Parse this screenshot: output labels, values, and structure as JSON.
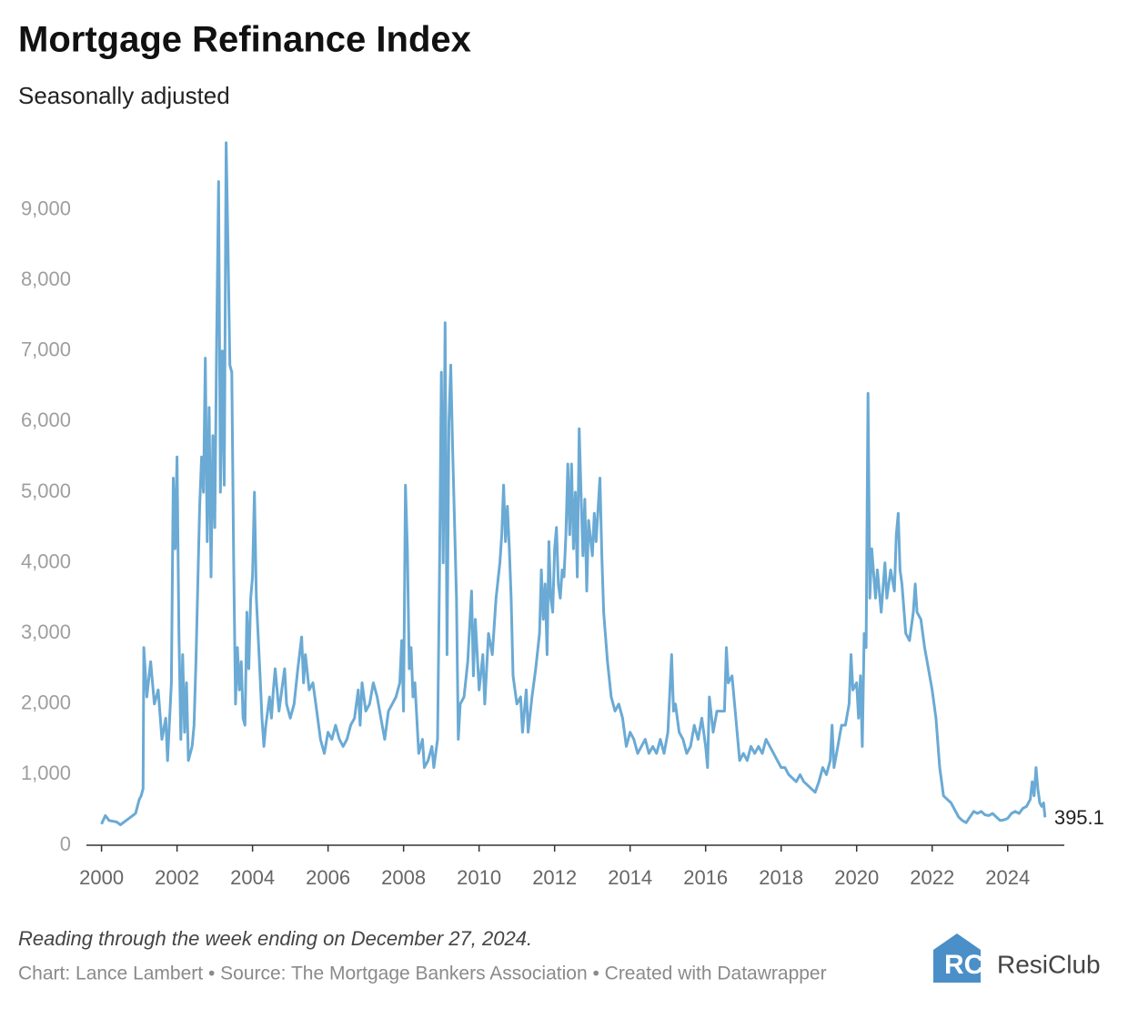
{
  "chart_data": {
    "type": "line",
    "title": "Mortgage Refinance Index",
    "subtitle": "Seasonally adjusted",
    "note": "Reading through the week ending on December 27, 2024.",
    "source": "Chart: Lance Lambert • Source: The Mortgage Bankers Association • Created with Datawrapper",
    "brand": "ResiClub",
    "xlim": [
      1999.6,
      2025.5
    ],
    "xticks": [
      2000,
      2002,
      2004,
      2006,
      2008,
      2010,
      2012,
      2014,
      2016,
      2018,
      2020,
      2022,
      2024
    ],
    "ylim": [
      0,
      10000
    ],
    "yticks": [
      0,
      {
        "value": 1000,
        "label": "1,000"
      },
      {
        "value": 2000,
        "label": "2,000"
      },
      {
        "value": 3000,
        "label": "3,000"
      },
      {
        "value": 4000,
        "label": "4,000"
      },
      {
        "value": 5000,
        "label": "5,000"
      },
      {
        "value": 6000,
        "label": "6,000"
      },
      {
        "value": 7000,
        "label": "7,000"
      },
      {
        "value": 8000,
        "label": "8,000"
      },
      {
        "value": 9000,
        "label": "9,000"
      }
    ],
    "grid": false,
    "series": [
      {
        "name": "Mortgage Refinance Index",
        "color": "#6aaad4",
        "x": [
          2000.0,
          2000.1,
          2000.2,
          2000.4,
          2000.5,
          2000.7,
          2000.9,
          2001.0,
          2001.05,
          2001.1,
          2001.12,
          2001.2,
          2001.3,
          2001.4,
          2001.5,
          2001.6,
          2001.7,
          2001.75,
          2001.85,
          2001.9,
          2001.95,
          2002.0,
          2002.05,
          2002.1,
          2002.15,
          2002.2,
          2002.25,
          2002.3,
          2002.4,
          2002.45,
          2002.5,
          2002.6,
          2002.65,
          2002.7,
          2002.75,
          2002.8,
          2002.85,
          2002.9,
          2002.95,
          2003.0,
          2003.05,
          2003.1,
          2003.15,
          2003.2,
          2003.25,
          2003.3,
          2003.35,
          2003.4,
          2003.45,
          2003.5,
          2003.55,
          2003.6,
          2003.65,
          2003.7,
          2003.75,
          2003.8,
          2003.85,
          2003.9,
          2003.95,
          2004.0,
          2004.05,
          2004.1,
          2004.2,
          2004.25,
          2004.3,
          2004.35,
          2004.45,
          2004.5,
          2004.55,
          2004.6,
          2004.7,
          2004.8,
          2004.85,
          2004.9,
          2005.0,
          2005.1,
          2005.2,
          2005.3,
          2005.35,
          2005.4,
          2005.5,
          2005.6,
          2005.7,
          2005.8,
          2005.9,
          2006.0,
          2006.1,
          2006.2,
          2006.3,
          2006.4,
          2006.5,
          2006.6,
          2006.7,
          2006.8,
          2006.85,
          2006.9,
          2007.0,
          2007.1,
          2007.2,
          2007.3,
          2007.4,
          2007.5,
          2007.6,
          2007.7,
          2007.8,
          2007.9,
          2007.95,
          2008.0,
          2008.05,
          2008.1,
          2008.15,
          2008.2,
          2008.25,
          2008.3,
          2008.4,
          2008.5,
          2008.55,
          2008.65,
          2008.75,
          2008.8,
          2008.9,
          2008.95,
          2009.0,
          2009.05,
          2009.1,
          2009.15,
          2009.2,
          2009.25,
          2009.3,
          2009.4,
          2009.45,
          2009.5,
          2009.6,
          2009.7,
          2009.8,
          2009.85,
          2009.9,
          2010.0,
          2010.1,
          2010.15,
          2010.25,
          2010.35,
          2010.45,
          2010.55,
          2010.6,
          2010.65,
          2010.7,
          2010.75,
          2010.8,
          2010.85,
          2010.9,
          2011.0,
          2011.1,
          2011.15,
          2011.25,
          2011.3,
          2011.4,
          2011.5,
          2011.6,
          2011.65,
          2011.7,
          2011.75,
          2011.8,
          2011.85,
          2011.9,
          2011.95,
          2012.0,
          2012.05,
          2012.1,
          2012.15,
          2012.2,
          2012.25,
          2012.3,
          2012.35,
          2012.4,
          2012.45,
          2012.5,
          2012.55,
          2012.6,
          2012.65,
          2012.7,
          2012.75,
          2012.8,
          2012.85,
          2012.9,
          2013.0,
          2013.05,
          2013.1,
          2013.2,
          2013.25,
          2013.3,
          2013.4,
          2013.5,
          2013.6,
          2013.7,
          2013.8,
          2013.9,
          2014.0,
          2014.1,
          2014.2,
          2014.3,
          2014.4,
          2014.5,
          2014.6,
          2014.7,
          2014.8,
          2014.9,
          2015.0,
          2015.1,
          2015.15,
          2015.2,
          2015.3,
          2015.4,
          2015.5,
          2015.6,
          2015.7,
          2015.8,
          2015.9,
          2016.0,
          2016.05,
          2016.1,
          2016.2,
          2016.3,
          2016.4,
          2016.5,
          2016.55,
          2016.6,
          2016.7,
          2016.8,
          2016.9,
          2017.0,
          2017.1,
          2017.2,
          2017.3,
          2017.4,
          2017.5,
          2017.6,
          2017.7,
          2017.8,
          2017.9,
          2018.0,
          2018.1,
          2018.2,
          2018.4,
          2018.5,
          2018.6,
          2018.7,
          2018.8,
          2018.9,
          2019.0,
          2019.1,
          2019.2,
          2019.3,
          2019.35,
          2019.4,
          2019.5,
          2019.6,
          2019.7,
          2019.8,
          2019.85,
          2019.9,
          2020.0,
          2020.05,
          2020.1,
          2020.15,
          2020.2,
          2020.25,
          2020.3,
          2020.35,
          2020.4,
          2020.5,
          2020.55,
          2020.65,
          2020.75,
          2020.8,
          2020.9,
          2021.0,
          2021.05,
          2021.1,
          2021.15,
          2021.2,
          2021.3,
          2021.4,
          2021.5,
          2021.55,
          2021.6,
          2021.7,
          2021.8,
          2021.9,
          2022.0,
          2022.1,
          2022.2,
          2022.3,
          2022.4,
          2022.5,
          2022.6,
          2022.7,
          2022.8,
          2022.9,
          2023.0,
          2023.1,
          2023.2,
          2023.3,
          2023.4,
          2023.5,
          2023.6,
          2023.7,
          2023.8,
          2023.9,
          2024.0,
          2024.1,
          2024.2,
          2024.3,
          2024.4,
          2024.5,
          2024.6,
          2024.65,
          2024.7,
          2024.75,
          2024.8,
          2024.85,
          2024.9,
          2024.95,
          2024.99
        ],
        "values": [
          300,
          420,
          350,
          330,
          290,
          370,
          450,
          650,
          700,
          800,
          2800,
          2100,
          2600,
          2000,
          2200,
          1500,
          1800,
          1200,
          2300,
          5200,
          4200,
          5500,
          3000,
          1500,
          2700,
          1600,
          2300,
          1200,
          1400,
          1700,
          2600,
          4800,
          5500,
          5000,
          6900,
          4300,
          6200,
          3800,
          5800,
          4500,
          7200,
          9400,
          5000,
          7000,
          5100,
          9950,
          8500,
          6800,
          6700,
          4000,
          2000,
          2800,
          2200,
          2600,
          1800,
          1700,
          3300,
          2500,
          3500,
          3800,
          5000,
          3500,
          2400,
          1800,
          1400,
          1700,
          2100,
          1800,
          2200,
          2500,
          1900,
          2300,
          2500,
          2000,
          1800,
          2000,
          2500,
          2950,
          2300,
          2700,
          2200,
          2300,
          1900,
          1500,
          1300,
          1600,
          1500,
          1700,
          1500,
          1400,
          1500,
          1700,
          1800,
          2200,
          1700,
          2300,
          1900,
          2000,
          2300,
          2100,
          1800,
          1500,
          1900,
          2000,
          2100,
          2300,
          2900,
          1900,
          5100,
          4200,
          2500,
          2800,
          2100,
          2300,
          1300,
          1500,
          1100,
          1200,
          1400,
          1100,
          1500,
          3800,
          6700,
          4000,
          7400,
          2700,
          6000,
          6800,
          5600,
          3500,
          1500,
          2000,
          2100,
          2600,
          3600,
          2400,
          3200,
          2200,
          2700,
          2000,
          3000,
          2700,
          3500,
          4000,
          4400,
          5100,
          4300,
          4800,
          4200,
          3500,
          2400,
          2000,
          2100,
          1600,
          2200,
          1600,
          2100,
          2500,
          3000,
          3900,
          3200,
          3700,
          2700,
          4300,
          3500,
          3300,
          4200,
          4500,
          3700,
          3500,
          3900,
          3800,
          4400,
          5400,
          4400,
          5400,
          4200,
          5000,
          3800,
          5900,
          5000,
          4100,
          4900,
          3600,
          4600,
          4100,
          4700,
          4300,
          5200,
          4100,
          3300,
          2600,
          2100,
          1900,
          2000,
          1800,
          1400,
          1600,
          1500,
          1300,
          1400,
          1500,
          1300,
          1400,
          1300,
          1500,
          1300,
          1600,
          2700,
          1900,
          2000,
          1600,
          1500,
          1300,
          1400,
          1700,
          1500,
          1800,
          1400,
          1100,
          2100,
          1600,
          1900,
          1900,
          1900,
          2800,
          2300,
          2400,
          1800,
          1200,
          1300,
          1200,
          1400,
          1300,
          1400,
          1300,
          1500,
          1400,
          1300,
          1200,
          1100,
          1100,
          1000,
          900,
          1000,
          900,
          850,
          800,
          750,
          900,
          1100,
          1000,
          1200,
          1700,
          1100,
          1400,
          1700,
          1700,
          2000,
          2700,
          2200,
          2300,
          1800,
          2400,
          1400,
          3000,
          2800,
          6400,
          3500,
          4200,
          3500,
          3900,
          3300,
          4000,
          3500,
          3900,
          3600,
          4400,
          4700,
          3900,
          3700,
          3000,
          2900,
          3300,
          3700,
          3300,
          3200,
          2800,
          2500,
          2200,
          1800,
          1100,
          700,
          650,
          600,
          500,
          400,
          350,
          320,
          400,
          480,
          450,
          480,
          430,
          420,
          450,
          400,
          350,
          360,
          380,
          450,
          480,
          450,
          520,
          550,
          650,
          900,
          700,
          1100,
          800,
          600,
          550,
          600,
          395.1
        ]
      }
    ]
  }
}
